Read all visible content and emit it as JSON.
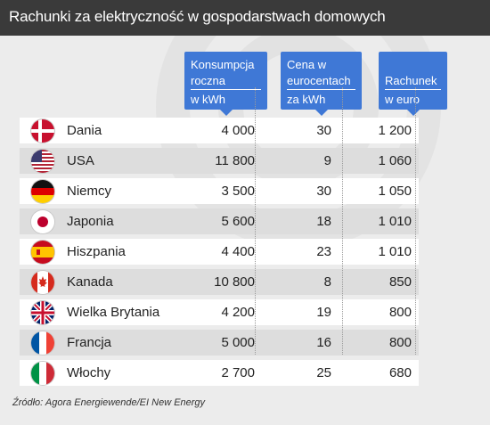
{
  "title": "Rachunki za elektryczność w gospodarstwach domowych",
  "source": "Źródło: Agora Energiewende/EI New Energy",
  "colors": {
    "header": "#3f78d6",
    "title_bar": "#3a3a3a",
    "panel": "#ececec"
  },
  "columns": [
    {
      "lines": [
        "Konsumpcja",
        "roczna",
        "w kWh"
      ]
    },
    {
      "lines": [
        "Cena w",
        "eurocentach",
        "za kWh"
      ]
    },
    {
      "lines": [
        "Rachunek",
        "w euro"
      ]
    }
  ],
  "chart_data": {
    "type": "table",
    "title": "Rachunki za elektryczność w gospodarstwach domowych",
    "columns": [
      "Konsumpcja roczna w kWh",
      "Cena w eurocentach za kWh",
      "Rachunek w euro"
    ],
    "rows": [
      {
        "country": "Dania",
        "flag": "denmark-flag-icon",
        "values": [
          "4 000",
          "30",
          "1 200"
        ]
      },
      {
        "country": "USA",
        "flag": "usa-flag-icon",
        "values": [
          "11 800",
          "9",
          "1 060"
        ]
      },
      {
        "country": "Niemcy",
        "flag": "germany-flag-icon",
        "values": [
          "3 500",
          "30",
          "1 050"
        ]
      },
      {
        "country": "Japonia",
        "flag": "japan-flag-icon",
        "values": [
          "5 600",
          "18",
          "1 010"
        ]
      },
      {
        "country": "Hiszpania",
        "flag": "spain-flag-icon",
        "values": [
          "4 400",
          "23",
          "1 010"
        ]
      },
      {
        "country": "Kanada",
        "flag": "canada-flag-icon",
        "values": [
          "10 800",
          "8",
          "850"
        ]
      },
      {
        "country": "Wielka Brytania",
        "flag": "uk-flag-icon",
        "values": [
          "4 200",
          "19",
          "800"
        ]
      },
      {
        "country": "Francja",
        "flag": "france-flag-icon",
        "values": [
          "5 000",
          "16",
          "800"
        ]
      },
      {
        "country": "Włochy",
        "flag": "italy-flag-icon",
        "values": [
          "2 700",
          "25",
          "680"
        ]
      }
    ]
  }
}
